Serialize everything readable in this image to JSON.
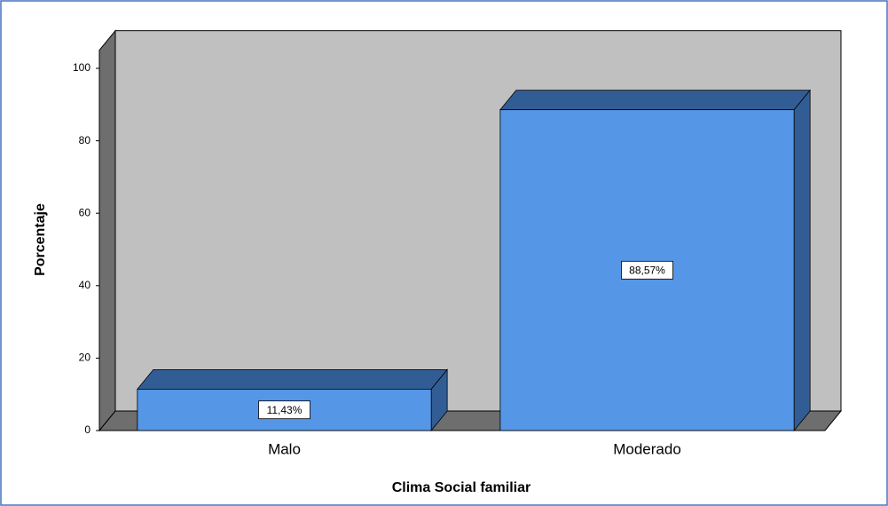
{
  "chart_data": {
    "type": "bar",
    "x_label": "Clima Social familiar",
    "y_label": "Porcentaje",
    "categories": [
      "Malo",
      "Moderado"
    ],
    "values": [
      11.43,
      88.57
    ],
    "value_labels": [
      "11,43%",
      "88,57%"
    ],
    "color": "#5596e6",
    "ylim": [
      0,
      105
    ],
    "yticks": [
      0,
      20,
      40,
      60,
      80,
      100
    ]
  }
}
